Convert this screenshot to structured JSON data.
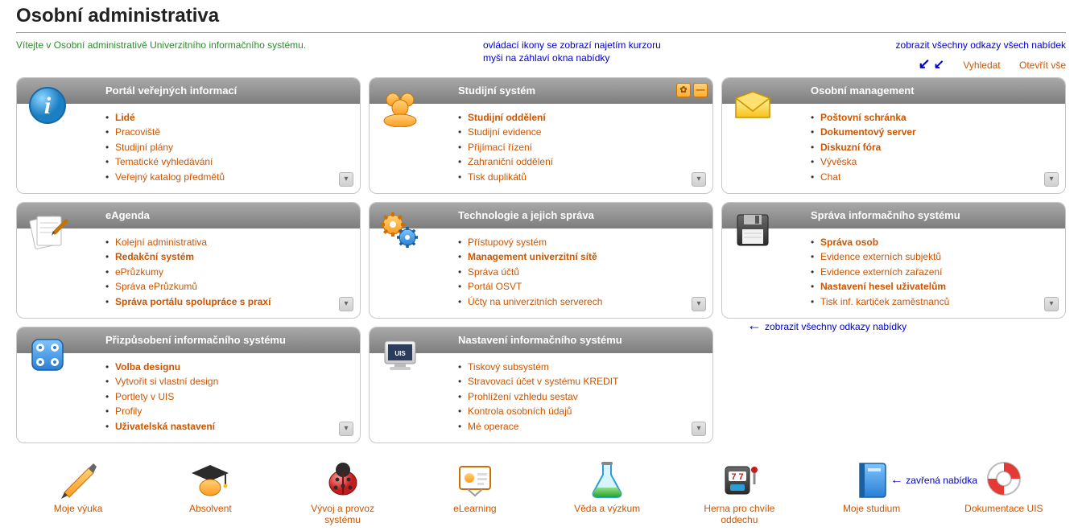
{
  "page": {
    "title": "Osobní administrativa",
    "welcome": "Vítejte v Osobní administrativě Univerzitního informačního systému.",
    "hint_controls_l1": "ovládací ikony se zobrazí najetím kurzoru",
    "hint_controls_l2": "myši na záhlaví okna nabídky",
    "hint_all_links": "zobrazit všechny odkazy všech nabídek",
    "hint_panel_links": "zobrazit všechny odkazy nabídky",
    "hint_closed": "zavřená nabídka",
    "link_search": "Vyhledat",
    "link_open_all": "Otevřít vše"
  },
  "colors": {
    "link": "#cc5500",
    "hint": "#0000cc",
    "welcome": "#2e8b2e",
    "header_grad_top": "#a9a9a9",
    "header_grad_bottom": "#7d7d7d",
    "panel_border": "#c8c8c8"
  },
  "panels": [
    {
      "title": "Portál veřejných informací",
      "icon": "info",
      "items": [
        {
          "label": "Lidé",
          "bold": true
        },
        {
          "label": "Pracoviště",
          "bold": false
        },
        {
          "label": "Studijní plány",
          "bold": false
        },
        {
          "label": "Tematické vyhledávání",
          "bold": false
        },
        {
          "label": "Veřejný katalog předmětů",
          "bold": false
        }
      ]
    },
    {
      "title": "Studijní systém",
      "icon": "people",
      "show_controls": true,
      "items": [
        {
          "label": "Studijní oddělení",
          "bold": true
        },
        {
          "label": "Studijní evidence",
          "bold": false
        },
        {
          "label": "Přijímací řízení",
          "bold": false
        },
        {
          "label": "Zahraniční oddělení",
          "bold": false
        },
        {
          "label": "Tisk duplikátů",
          "bold": false
        }
      ]
    },
    {
      "title": "Osobní management",
      "icon": "mail",
      "items": [
        {
          "label": "Poštovní schránka",
          "bold": true
        },
        {
          "label": "Dokumentový server",
          "bold": true
        },
        {
          "label": "Diskuzní fóra",
          "bold": true
        },
        {
          "label": "Vývěska",
          "bold": false
        },
        {
          "label": "Chat",
          "bold": false
        }
      ]
    },
    {
      "title": "eAgenda",
      "icon": "docs",
      "items": [
        {
          "label": "Kolejní administrativa",
          "bold": false
        },
        {
          "label": "Redakční systém",
          "bold": true
        },
        {
          "label": "ePrůzkumy",
          "bold": false
        },
        {
          "label": "Správa ePrůzkumů",
          "bold": false
        },
        {
          "label": "Správa portálu spolupráce s praxí",
          "bold": true
        }
      ]
    },
    {
      "title": "Technologie a jejich správa",
      "icon": "gears",
      "items": [
        {
          "label": "Přístupový systém",
          "bold": false
        },
        {
          "label": "Management univerzitní sítě",
          "bold": true
        },
        {
          "label": "Správa účtů",
          "bold": false
        },
        {
          "label": "Portál OSVT",
          "bold": false
        },
        {
          "label": "Účty na univerzitních serverech",
          "bold": false
        }
      ]
    },
    {
      "title": "Správa informačního systému",
      "icon": "floppy",
      "items": [
        {
          "label": "Správa osob",
          "bold": true
        },
        {
          "label": "Evidence externích subjektů",
          "bold": false
        },
        {
          "label": "Evidence externích zařazení",
          "bold": false
        },
        {
          "label": "Nastavení hesel uživatelům",
          "bold": true
        },
        {
          "label": "Tisk inf. kartiček zaměstnanců",
          "bold": false
        }
      ]
    },
    {
      "title": "Přizpůsobení informačního systému",
      "icon": "dice",
      "items": [
        {
          "label": "Volba designu",
          "bold": true
        },
        {
          "label": "Vytvořit si vlastní design",
          "bold": false
        },
        {
          "label": "Portlety v UIS",
          "bold": false
        },
        {
          "label": "Profily",
          "bold": false
        },
        {
          "label": "Uživatelská nastavení",
          "bold": true
        }
      ]
    },
    {
      "title": "Nastavení informačního systému",
      "icon": "monitor",
      "items": [
        {
          "label": "Tiskový subsystém",
          "bold": false
        },
        {
          "label": "Stravovací účet v systému KREDIT",
          "bold": false
        },
        {
          "label": "Prohlížení vzhledu sestav",
          "bold": false
        },
        {
          "label": "Kontrola osobních údajů",
          "bold": false
        },
        {
          "label": "Mé operace",
          "bold": false
        }
      ]
    }
  ],
  "bottom": [
    {
      "label": "Moje výuka",
      "icon": "pen"
    },
    {
      "label": "Absolvent",
      "icon": "grad"
    },
    {
      "label": "Vývoj a provoz systému",
      "icon": "bug"
    },
    {
      "label": "eLearning",
      "icon": "slides"
    },
    {
      "label": "Věda a výzkum",
      "icon": "flask"
    },
    {
      "label": "Herna pro chvíle oddechu",
      "icon": "slot"
    },
    {
      "label": "Moje studium",
      "icon": "book"
    },
    {
      "label": "Dokumentace UIS",
      "icon": "buoy"
    }
  ]
}
